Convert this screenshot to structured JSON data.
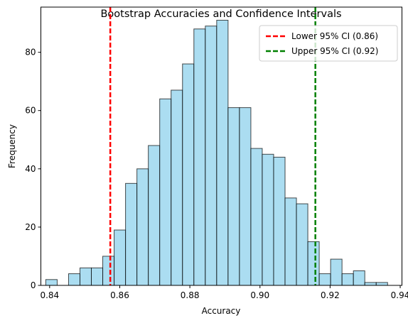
{
  "chart_data": {
    "type": "bar",
    "title": "Bootstrap Accuracies and Confidence Intervals",
    "xlabel": "Accuracy",
    "ylabel": "Frequency",
    "xlim": [
      0.8375,
      0.9405
    ],
    "ylim": [
      0,
      95.5
    ],
    "x_ticks": [
      0.84,
      0.86,
      0.88,
      0.9,
      0.92,
      0.94
    ],
    "x_tick_labels": [
      "0.84",
      "0.86",
      "0.88",
      "0.90",
      "0.92",
      "0.94"
    ],
    "y_ticks": [
      0,
      20,
      40,
      60,
      80
    ],
    "y_tick_labels": [
      "0",
      "20",
      "40",
      "60",
      "80"
    ],
    "grid": false,
    "legend_position": "top-right",
    "bar_color": "#87CEEB",
    "bar_edge_color": "#000000",
    "bins": {
      "start": 0.8389,
      "width": 0.00325,
      "counts": [
        2,
        0,
        4,
        6,
        6,
        10,
        19,
        35,
        40,
        48,
        64,
        67,
        76,
        88,
        89,
        91,
        61,
        61,
        47,
        45,
        44,
        30,
        28,
        15,
        4,
        9,
        4,
        5,
        1,
        1
      ]
    },
    "reference_lines": [
      {
        "label": "Lower 95% CI (0.86)",
        "x": 0.8573,
        "color": "#FF0000",
        "style": "dashed"
      },
      {
        "label": "Upper 95% CI (0.92)",
        "x": 0.9158,
        "color": "#008000",
        "style": "dashed"
      }
    ]
  }
}
